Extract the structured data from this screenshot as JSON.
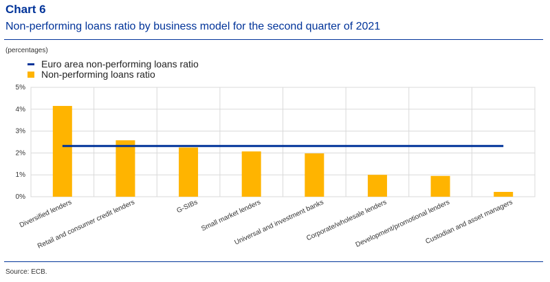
{
  "header": {
    "chart_number": "Chart 6",
    "title": "Non-performing loans ratio by business model for the second quarter of 2021",
    "units": "(percentages)"
  },
  "footer": {
    "source": "Source: ECB."
  },
  "colors": {
    "accent": "#003399",
    "bar": "#FFB400",
    "grid": "#d9d9d9"
  },
  "chart_data": {
    "type": "bar",
    "title": "Non-performing loans ratio by business model for the second quarter of 2021",
    "ylabel": "",
    "xlabel": "",
    "ylim": [
      0,
      5
    ],
    "yticks": [
      "0%",
      "1%",
      "2%",
      "3%",
      "4%",
      "5%"
    ],
    "grid": true,
    "legend_placement": "top-left",
    "categories": [
      "Diversified lenders",
      "Retail and consumer credit lenders",
      "G-SIBs",
      "Small market lenders",
      "Universal and investment banks",
      "Corporate/wholesale lenders",
      "Development/promotional lenders",
      "Custodian and asset managers"
    ],
    "series": [
      {
        "name": "Non-performing loans ratio",
        "type": "bar",
        "values": [
          4.15,
          2.58,
          2.25,
          2.07,
          1.98,
          1.0,
          0.95,
          0.22
        ]
      },
      {
        "name": "Euro area non-performing loans ratio",
        "type": "line",
        "values": [
          2.32,
          2.32,
          2.32,
          2.32,
          2.32,
          2.32,
          2.32,
          2.32
        ]
      }
    ]
  }
}
